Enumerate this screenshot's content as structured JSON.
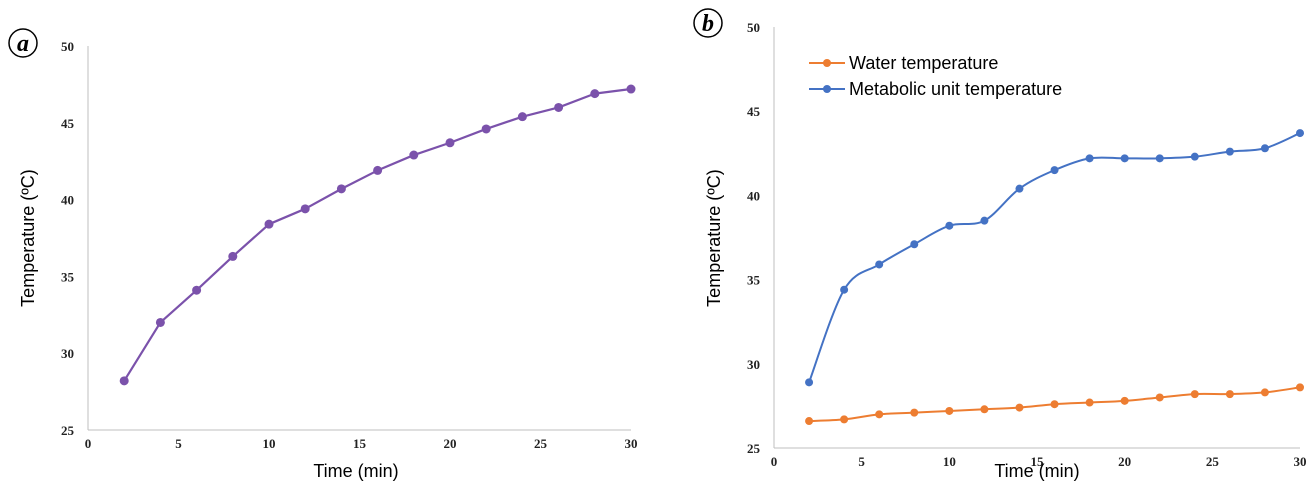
{
  "chart_data": [
    {
      "type": "line",
      "panel": "a",
      "xlabel": "Time (min)",
      "ylabel": "Temperature (ºC)",
      "xlim": [
        0,
        30
      ],
      "ylim": [
        25,
        50
      ],
      "xticks": [
        0,
        5,
        10,
        15,
        20,
        25,
        30
      ],
      "yticks": [
        25,
        30,
        35,
        40,
        45,
        50
      ],
      "grid": false,
      "series": [
        {
          "color": "#7B52AB",
          "x": [
            2,
            4,
            6,
            8,
            10,
            12,
            14,
            16,
            18,
            20,
            22,
            24,
            26,
            28,
            30
          ],
          "y": [
            28.2,
            32.0,
            34.1,
            36.3,
            38.4,
            39.4,
            40.7,
            41.9,
            42.9,
            43.7,
            44.6,
            45.4,
            46.0,
            46.9,
            47.2
          ]
        }
      ]
    },
    {
      "type": "line",
      "panel": "b",
      "xlabel": "Time (min)",
      "ylabel": "Temperature (ºC)",
      "xlim": [
        0,
        30
      ],
      "ylim": [
        25,
        50
      ],
      "xticks": [
        0,
        5,
        10,
        15,
        20,
        25,
        30
      ],
      "yticks": [
        25,
        30,
        35,
        40,
        45,
        50
      ],
      "grid": false,
      "legend": "top-left",
      "series": [
        {
          "name": "Water temperature",
          "color": "#ED7D31",
          "x": [
            2,
            4,
            6,
            8,
            10,
            12,
            14,
            16,
            18,
            20,
            22,
            24,
            26,
            28,
            30
          ],
          "y": [
            26.6,
            26.7,
            27.0,
            27.1,
            27.2,
            27.3,
            27.4,
            27.6,
            27.7,
            27.8,
            28.0,
            28.2,
            28.2,
            28.3,
            28.6
          ]
        },
        {
          "name": "Metabolic unit temperature",
          "color": "#4472C4",
          "x": [
            2,
            4,
            6,
            8,
            10,
            12,
            14,
            16,
            18,
            20,
            22,
            24,
            26,
            28,
            30
          ],
          "y": [
            28.9,
            34.4,
            35.9,
            37.1,
            38.2,
            38.5,
            40.4,
            41.5,
            42.2,
            42.2,
            42.2,
            42.3,
            42.6,
            42.8,
            43.7
          ]
        }
      ]
    }
  ]
}
